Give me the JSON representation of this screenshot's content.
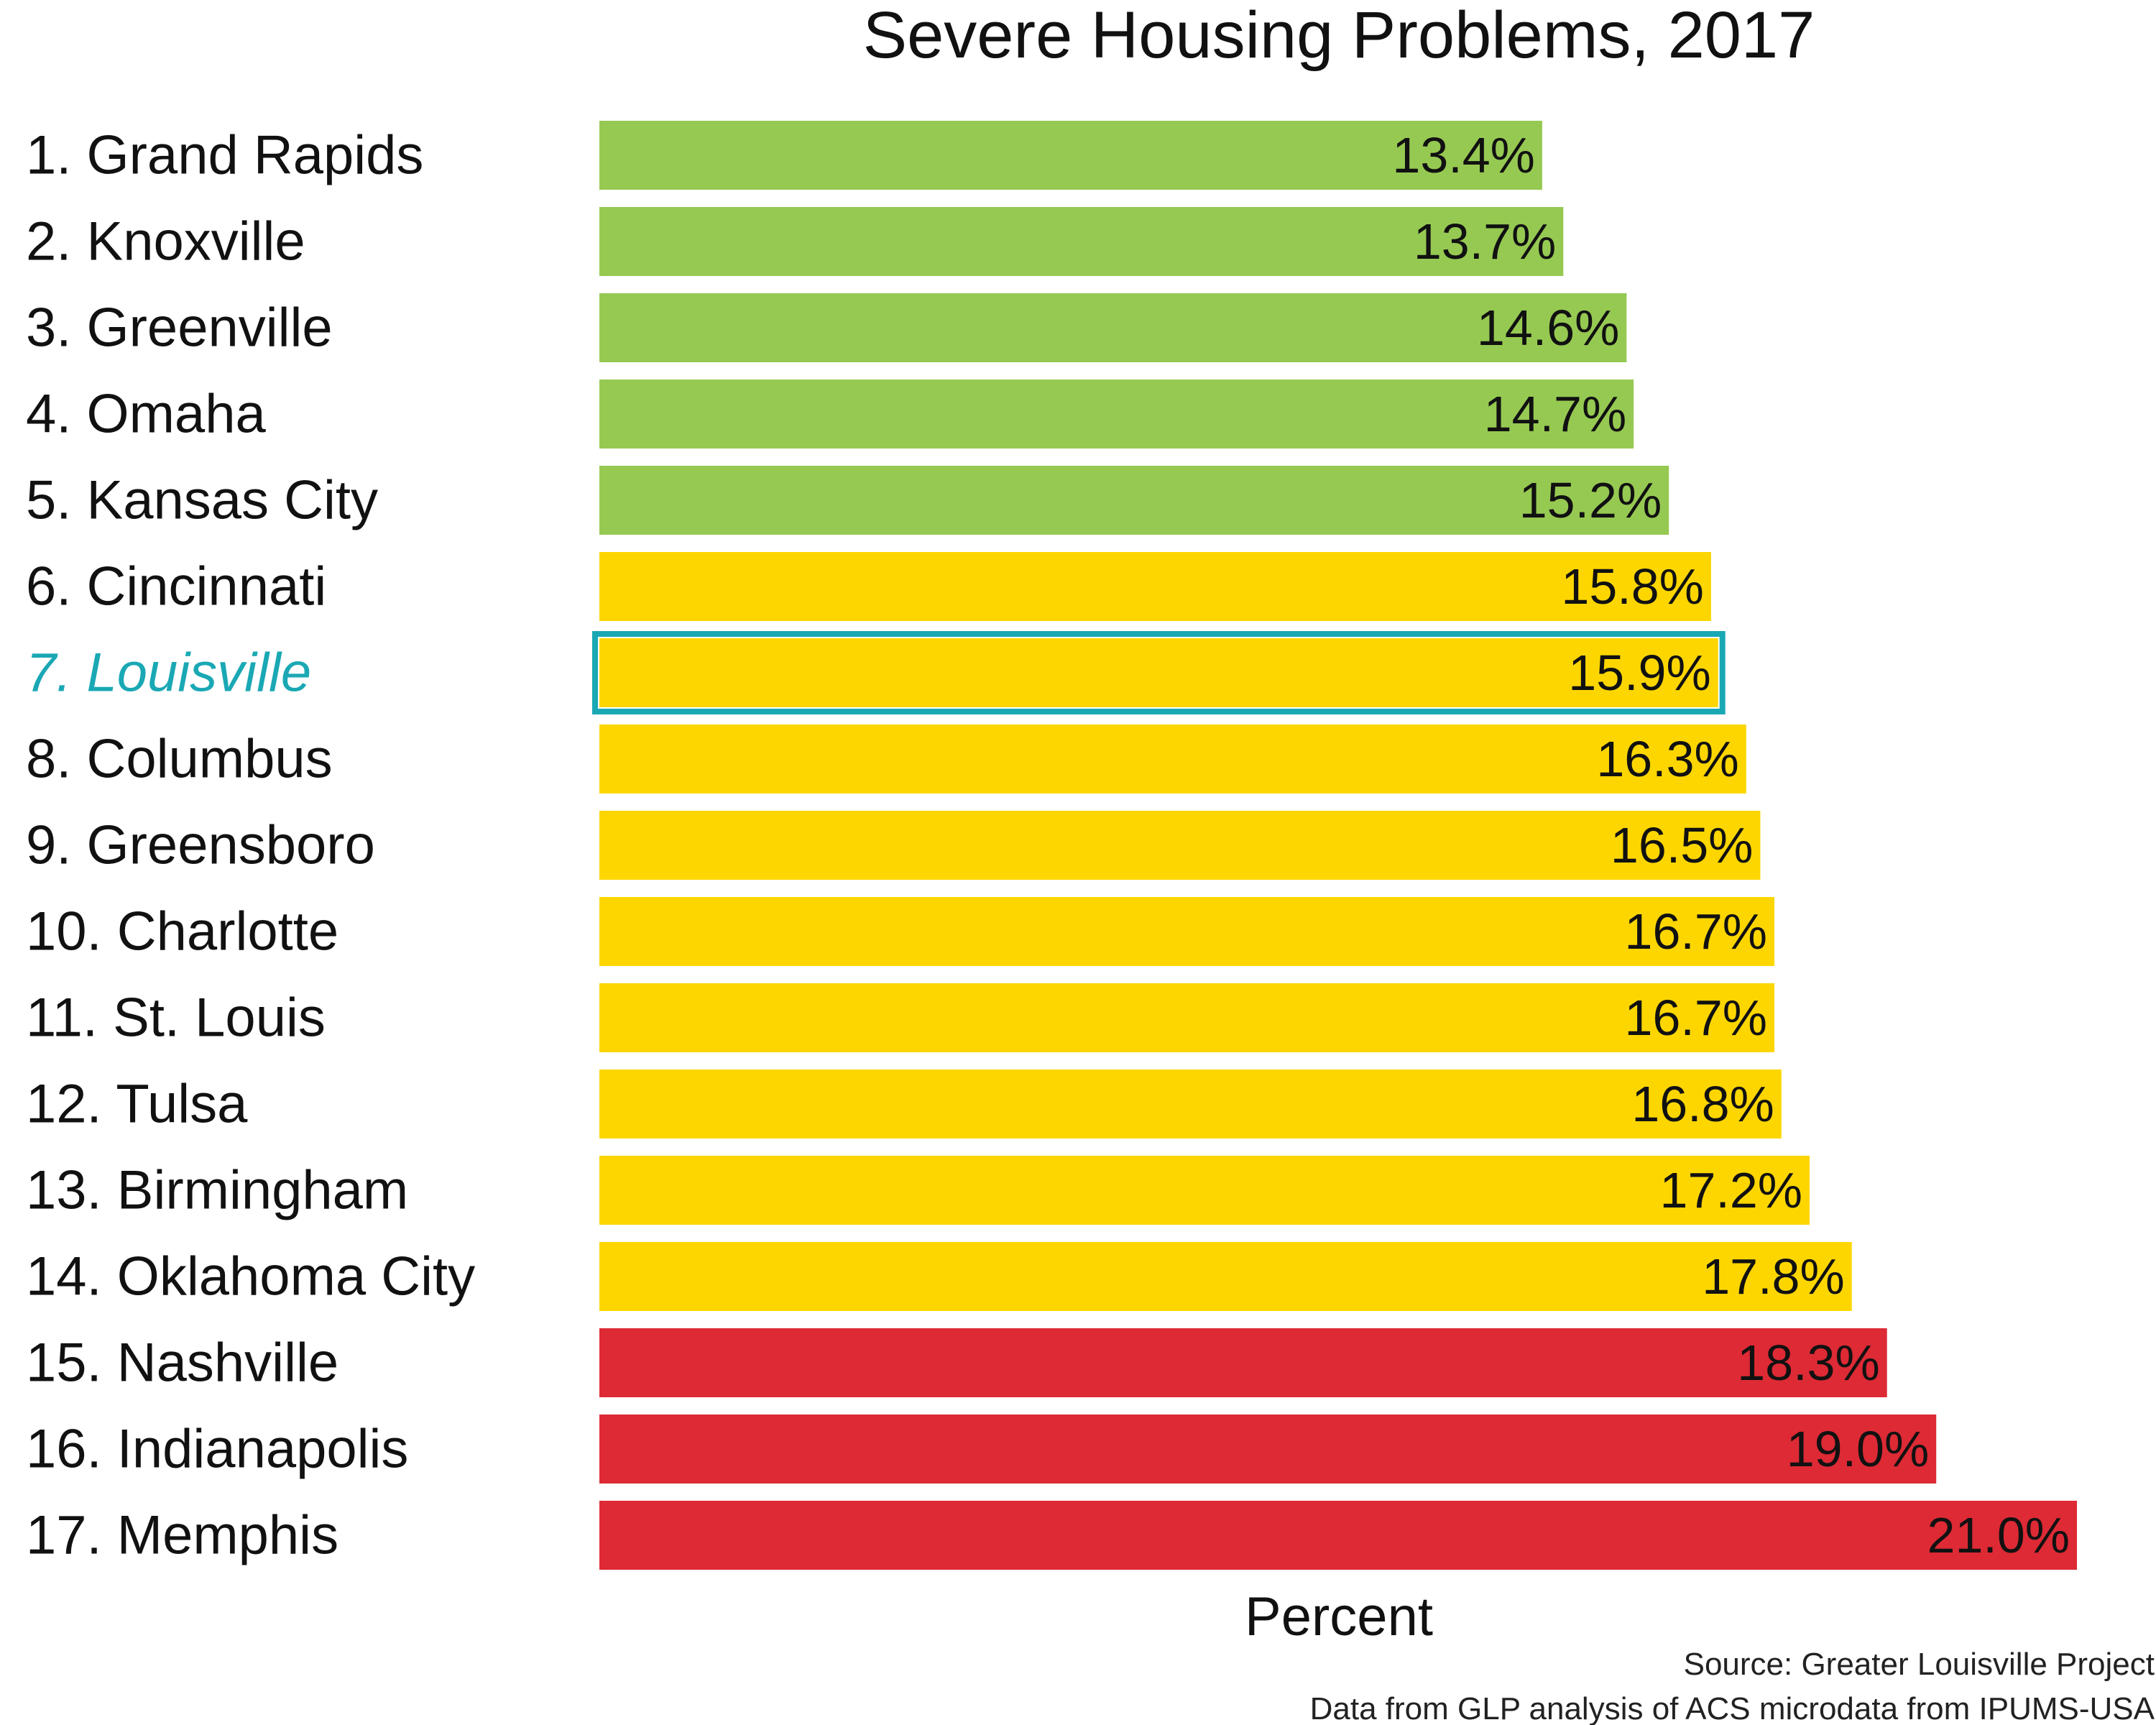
{
  "chart_data": {
    "type": "bar",
    "orientation": "horizontal",
    "title": "Severe Housing Problems, 2017",
    "xlabel": "Percent",
    "ylabel": "",
    "xlim": [
      0,
      21.0
    ],
    "grid": false,
    "categories": [
      "1. Grand Rapids",
      "2. Knoxville",
      "3. Greenville",
      "4. Omaha",
      "5. Kansas City",
      "6. Cincinnati",
      "7. Louisville",
      "8. Columbus",
      "9. Greensboro",
      "10. Charlotte",
      "11. St. Louis",
      "12. Tulsa",
      "13. Birmingham",
      "14. Oklahoma City",
      "15. Nashville",
      "16. Indianapolis",
      "17. Memphis"
    ],
    "values": [
      13.4,
      13.7,
      14.6,
      14.7,
      15.2,
      15.8,
      15.9,
      16.3,
      16.5,
      16.7,
      16.7,
      16.8,
      17.2,
      17.8,
      18.3,
      19.0,
      21.0
    ],
    "value_labels": [
      "13.4%",
      "13.7%",
      "14.6%",
      "14.7%",
      "15.2%",
      "15.8%",
      "15.9%",
      "16.3%",
      "16.5%",
      "16.7%",
      "16.7%",
      "16.8%",
      "17.2%",
      "17.8%",
      "18.3%",
      "19.0%",
      "21.0%"
    ],
    "bar_colors": [
      "#96c952",
      "#96c952",
      "#96c952",
      "#96c952",
      "#96c952",
      "#fdd600",
      "#fdd600",
      "#fdd600",
      "#fdd600",
      "#fdd600",
      "#fdd600",
      "#fdd600",
      "#fdd600",
      "#fdd600",
      "#dd2a35",
      "#dd2a35",
      "#dd2a35"
    ],
    "highlight_index": 6,
    "highlight_color": "#1aa8b4",
    "source_lines": [
      "Source: Greater Louisville Project",
      "Data from GLP analysis of ACS microdata from IPUMS-USA"
    ]
  }
}
